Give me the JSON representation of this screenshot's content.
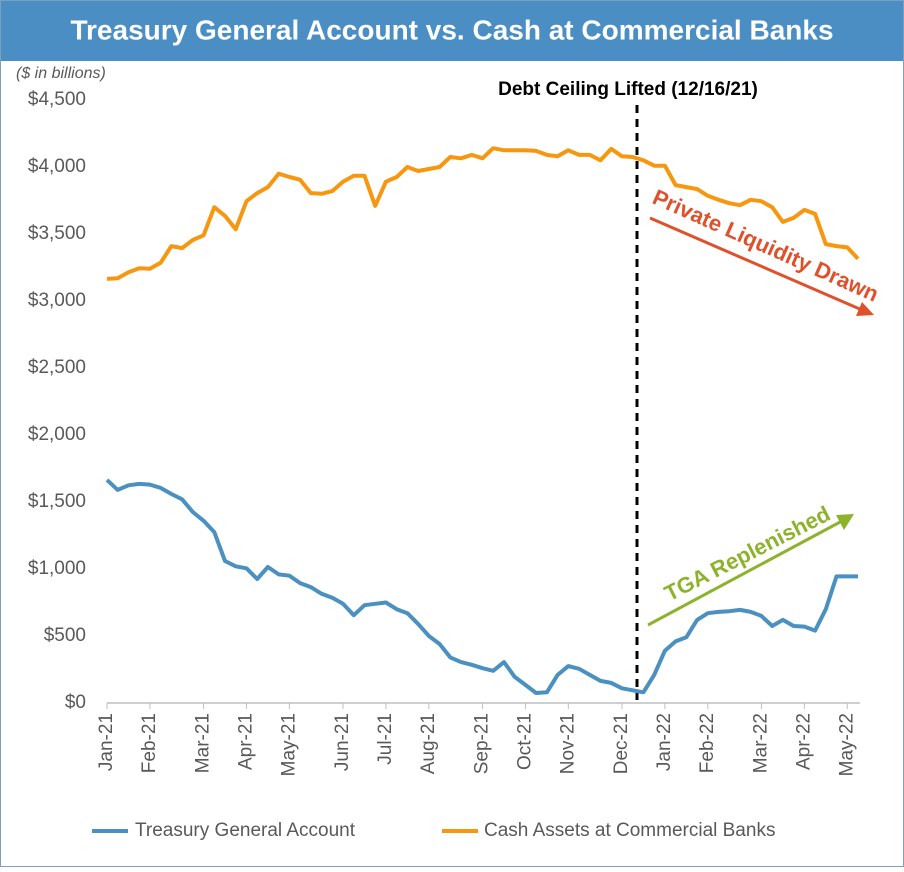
{
  "chart_data": {
    "type": "line",
    "title": "Treasury General Account vs. Cash at Commercial Banks",
    "y_label": "($ in billions)",
    "annotations": [
      "Debt Ceiling Lifted (12/16/21)",
      "Private Liquidity Drawn",
      "TGA Replenished"
    ],
    "categories": [
      "Jan-21",
      null,
      null,
      null,
      "Feb-21",
      null,
      null,
      null,
      null,
      "Mar-21",
      null,
      null,
      null,
      "Apr-21",
      null,
      null,
      null,
      "May-21",
      null,
      null,
      null,
      null,
      "Jun-21",
      null,
      null,
      null,
      "Jul-21",
      null,
      null,
      null,
      "Aug-21",
      null,
      null,
      null,
      null,
      "Sep-21",
      null,
      null,
      null,
      "Oct-21",
      null,
      null,
      null,
      "Nov-21",
      null,
      null,
      null,
      null,
      "Dec-21",
      null,
      null,
      null,
      "Jan-22",
      null,
      null,
      null,
      "Feb-22",
      null,
      null,
      null,
      null,
      "Mar-22",
      null,
      null,
      null,
      "Apr-22",
      null,
      null,
      null,
      "May-22",
      null
    ],
    "series": [
      {
        "name": "Treasury General Account",
        "color": "#4a90c0",
        "values": [
          1665,
          1590,
          1625,
          1635,
          1630,
          1605,
          1560,
          1520,
          1425,
          1360,
          1275,
          1060,
          1020,
          1005,
          925,
          1015,
          960,
          950,
          895,
          865,
          815,
          785,
          740,
          655,
          730,
          740,
          750,
          700,
          670,
          590,
          500,
          440,
          340,
          305,
          285,
          260,
          240,
          305,
          195,
          135,
          75,
          80,
          210,
          275,
          255,
          210,
          165,
          150,
          110,
          95,
          80,
          210,
          390,
          460,
          490,
          620,
          670,
          680,
          685,
          695,
          680,
          650,
          575,
          620,
          575,
          570,
          540,
          700,
          945,
          945,
          945
        ]
      },
      {
        "name": "Cash Assets at Commercial Banks",
        "color": "#f7960f",
        "values": [
          3165,
          3170,
          3215,
          3245,
          3240,
          3285,
          3410,
          3395,
          3455,
          3490,
          3700,
          3635,
          3535,
          3745,
          3805,
          3850,
          3950,
          3925,
          3905,
          3805,
          3800,
          3820,
          3890,
          3935,
          3935,
          3710,
          3890,
          3925,
          4000,
          3970,
          3985,
          4000,
          4075,
          4065,
          4090,
          4065,
          4140,
          4125,
          4125,
          4125,
          4120,
          4090,
          4080,
          4125,
          4090,
          4090,
          4050,
          4135,
          4080,
          4075,
          4050,
          4010,
          4010,
          3865,
          3850,
          3835,
          3785,
          3755,
          3730,
          3715,
          3755,
          3745,
          3700,
          3590,
          3620,
          3680,
          3650,
          3425,
          3410,
          3400,
          3315
        ]
      }
    ],
    "ylim": [
      0,
      4500
    ],
    "yticks": [
      {
        "value": 0,
        "label": "$0"
      },
      {
        "value": 500,
        "label": "$500"
      },
      {
        "value": 1000,
        "label": "$1,000"
      },
      {
        "value": 1500,
        "label": "$1,500"
      },
      {
        "value": 2000,
        "label": "$2,000"
      },
      {
        "value": 2500,
        "label": "$2,500"
      },
      {
        "value": 3000,
        "label": "$3,000"
      },
      {
        "value": 3500,
        "label": "$3,500"
      },
      {
        "value": 4000,
        "label": "$4,000"
      },
      {
        "value": 4500,
        "label": "$4,500"
      }
    ],
    "grid": false,
    "legend": "bottom"
  }
}
